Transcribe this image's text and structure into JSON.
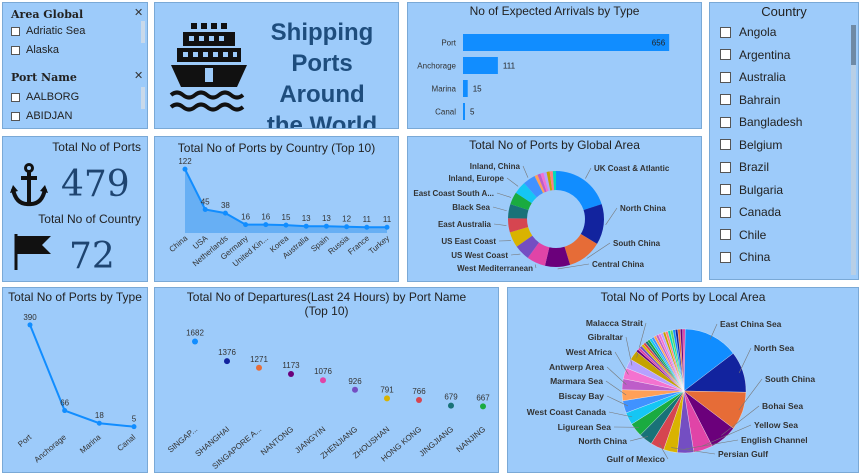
{
  "slicer_area": {
    "header": "Area Global",
    "items": [
      "Adriatic Sea",
      "Alaska"
    ]
  },
  "slicer_port": {
    "header": "Port Name",
    "items": [
      "AALBORG",
      "ABIDJAN"
    ]
  },
  "title_card": {
    "title_line1": "Shipping",
    "title_line2": "Ports Around",
    "title_line3": "the World",
    "icon": "ship-icon"
  },
  "kpis": {
    "ports_label": "Total No of Ports",
    "ports_value": "479",
    "country_label": "Total No of Country",
    "country_value": "72",
    "ports_icon": "anchor-icon",
    "country_icon": "flag-icon"
  },
  "country_slicer": {
    "header": "Country",
    "items": [
      "Angola",
      "Argentina",
      "Australia",
      "Bahrain",
      "Bangladesh",
      "Belgium",
      "Brazil",
      "Bulgaria",
      "Canada",
      "Chile",
      "China"
    ]
  },
  "colors": {
    "panel_bg": "#9dcbfa",
    "bar": "#118dff",
    "line": "#118dff",
    "area_fill": "#5aa8f2"
  },
  "chart_data": [
    {
      "id": "arrivals",
      "type": "bar",
      "title": "No of Expected Arrivals by Type",
      "categories": [
        "Port",
        "Anchorage",
        "Marina",
        "Canal"
      ],
      "values": [
        656,
        111,
        15,
        5
      ],
      "xlim": [
        0,
        700
      ]
    },
    {
      "id": "country_area",
      "type": "area",
      "title": "Total No of Ports by Country (Top 10)",
      "categories": [
        "China",
        "USA",
        "Netherlands",
        "Germany",
        "United Kin...",
        "Korea",
        "Australia",
        "Spain",
        "Russia",
        "France",
        "Turkey"
      ],
      "values": [
        122,
        45,
        38,
        16,
        16,
        15,
        13,
        13,
        12,
        11,
        11
      ],
      "ylim": [
        0,
        130
      ]
    },
    {
      "id": "global_area",
      "type": "pie",
      "title": "Total No of Ports by Global Area",
      "labels": [
        "UK Coast & Atlantic",
        "North China",
        "South China",
        "Central China",
        "West Mediterranean",
        "US West Coast",
        "US East Coast",
        "East Australia",
        "Black Sea",
        "East Coast South A...",
        "Inland, Europe",
        "Inland, China"
      ],
      "values": [
        38,
        26,
        22,
        16,
        12,
        10,
        10,
        9,
        9,
        8,
        8,
        8
      ]
    },
    {
      "id": "type_line",
      "type": "line",
      "title": "Total No of Ports by Type",
      "categories": [
        "Port",
        "Anchorage",
        "Marina",
        "Canal"
      ],
      "values": [
        390,
        66,
        18,
        5
      ],
      "ylim": [
        0,
        420
      ]
    },
    {
      "id": "departures",
      "type": "scatter",
      "title_line1": "Total No of Departures(Last 24 Hours) by Port Name",
      "title_line2": "(Top 10)",
      "categories": [
        "SINGAP...",
        "SHANGHAI",
        "SINGAPORE A...",
        "NANTONG",
        "JIANGYIN",
        "ZHENJIANG",
        "ZHOUSHAN",
        "HONG KONG",
        "JINGJIANG",
        "NANJING"
      ],
      "values": [
        1682,
        1376,
        1271,
        1173,
        1076,
        926,
        791,
        766,
        679,
        667
      ],
      "point_colors": [
        "#118dff",
        "#12239e",
        "#e66c37",
        "#6b007b",
        "#e044a7",
        "#744ec2",
        "#d9b300",
        "#d64550",
        "#197278",
        "#1aab40"
      ],
      "ylim": [
        500,
        1800
      ]
    },
    {
      "id": "local_area",
      "type": "pie",
      "title": "Total No of Ports by Local Area",
      "labels": [
        "East China Sea",
        "North Sea",
        "South China",
        "Bohai Sea",
        "Yellow Sea",
        "English Channel",
        "Persian Gulf",
        "Gulf of Mexico",
        "North China",
        "Ligurean Sea",
        "West Coast Canada",
        "Biscay Bay",
        "Marmara Sea",
        "Antwerp Area",
        "West Africa",
        "Gibraltar",
        "Malacca Strait"
      ],
      "values": [
        40,
        30,
        28,
        20,
        14,
        12,
        10,
        10,
        10,
        10,
        9,
        9,
        8,
        8,
        8,
        7,
        7
      ]
    }
  ]
}
